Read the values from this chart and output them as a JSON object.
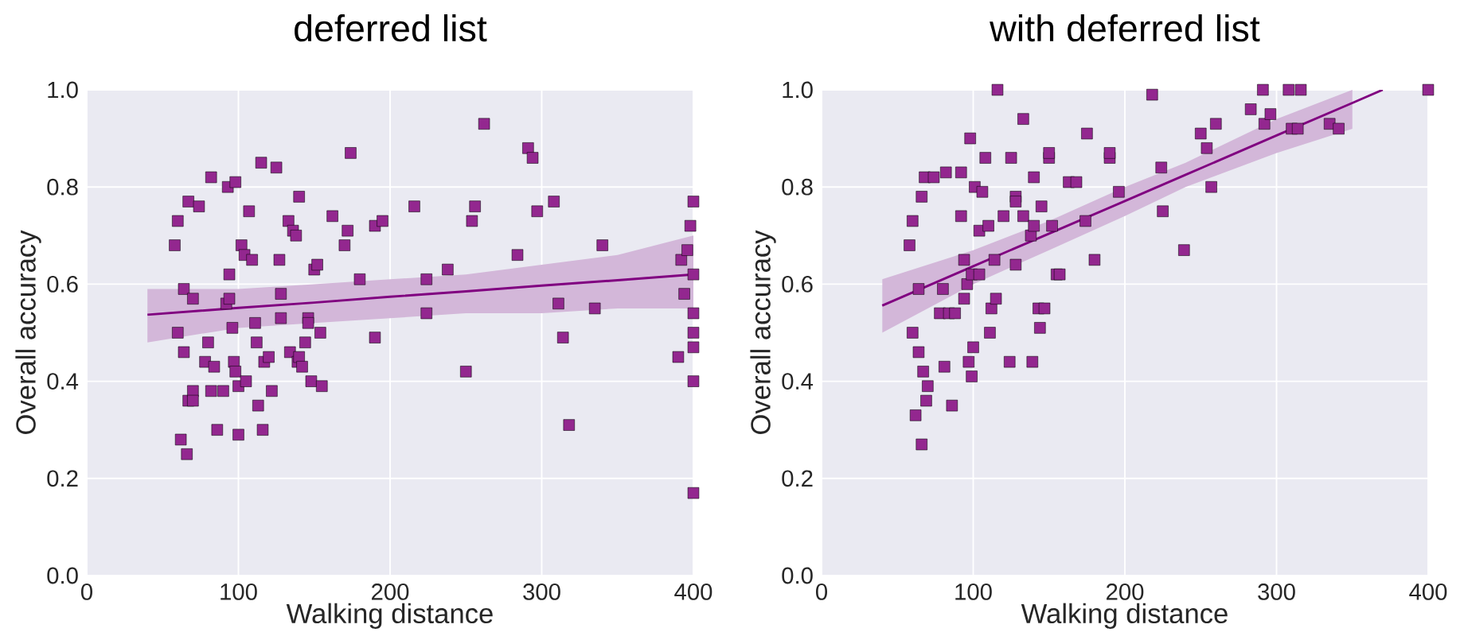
{
  "chart_data": [
    {
      "type": "scatter",
      "title": "deferred list",
      "xlabel": "Walking distance",
      "ylabel": "Overall accuracy",
      "xlim": [
        0,
        400
      ],
      "ylim": [
        0,
        1
      ],
      "xticks": [
        0,
        100,
        200,
        300,
        400
      ],
      "yticks": [
        {
          "value": 0,
          "label": "0.0"
        },
        {
          "value": 0.2,
          "label": "0.2"
        },
        {
          "value": 0.4,
          "label": "0.4"
        },
        {
          "value": 0.6,
          "label": "0.6"
        },
        {
          "value": 0.8,
          "label": "0.8"
        },
        {
          "value": 1,
          "label": "1.0"
        }
      ],
      "grid": true,
      "series": [
        {
          "marker": "square",
          "color": "#93278f",
          "x": [
            58,
            60,
            60,
            62,
            64,
            64,
            66,
            67,
            67,
            70,
            70,
            70,
            74,
            78,
            80,
            82,
            82,
            84,
            86,
            90,
            92,
            93,
            94,
            94,
            96,
            97,
            98,
            98,
            100,
            100,
            102,
            104,
            105,
            107,
            109,
            111,
            112,
            113,
            115,
            116,
            117,
            120,
            122,
            125,
            127,
            128,
            128,
            133,
            134,
            136,
            138,
            139,
            140,
            140,
            142,
            144,
            146,
            146,
            148,
            150,
            152,
            154,
            155,
            162,
            170,
            172,
            174,
            180,
            190,
            190,
            195,
            216,
            224,
            224,
            238,
            250,
            254,
            256,
            262,
            284,
            291,
            294,
            297,
            308,
            311,
            314,
            318,
            335,
            340,
            390,
            392,
            394,
            396,
            398,
            400,
            400,
            400,
            400,
            400,
            400,
            400
          ],
          "values": [
            0.68,
            0.73,
            0.5,
            0.28,
            0.59,
            0.46,
            0.25,
            0.77,
            0.36,
            0.57,
            0.38,
            0.36,
            0.76,
            0.44,
            0.48,
            0.82,
            0.38,
            0.43,
            0.3,
            0.38,
            0.56,
            0.8,
            0.62,
            0.57,
            0.51,
            0.44,
            0.81,
            0.42,
            0.29,
            0.39,
            0.68,
            0.66,
            0.4,
            0.75,
            0.65,
            0.52,
            0.48,
            0.35,
            0.85,
            0.3,
            0.44,
            0.45,
            0.38,
            0.84,
            0.65,
            0.58,
            0.53,
            0.73,
            0.46,
            0.71,
            0.7,
            0.44,
            0.78,
            0.45,
            0.43,
            0.48,
            0.53,
            0.52,
            0.4,
            0.63,
            0.64,
            0.5,
            0.39,
            0.74,
            0.68,
            0.71,
            0.87,
            0.61,
            0.72,
            0.49,
            0.73,
            0.76,
            0.61,
            0.54,
            0.63,
            0.42,
            0.73,
            0.76,
            0.93,
            0.66,
            0.88,
            0.86,
            0.75,
            0.77,
            0.56,
            0.49,
            0.31,
            0.55,
            0.68,
            0.45,
            0.65,
            0.58,
            0.67,
            0.72,
            0.77,
            0.62,
            0.54,
            0.5,
            0.47,
            0.4,
            0.17
          ]
        },
        {
          "type": "line",
          "color": "#800080",
          "x": [
            40,
            100,
            150,
            200,
            250,
            300,
            350,
            400
          ],
          "values": [
            0.537,
            0.551,
            0.562,
            0.574,
            0.585,
            0.597,
            0.608,
            0.62
          ],
          "lower": [
            0.48,
            0.51,
            0.52,
            0.53,
            0.54,
            0.54,
            0.55,
            0.55
          ],
          "upper": [
            0.59,
            0.59,
            0.6,
            0.61,
            0.62,
            0.64,
            0.66,
            0.7
          ]
        }
      ]
    },
    {
      "type": "scatter",
      "title": "with deferred list",
      "xlabel": "Walking distance",
      "ylabel": "Overall accuracy",
      "xlim": [
        0,
        400
      ],
      "ylim": [
        0,
        1
      ],
      "xticks": [
        0,
        100,
        200,
        300,
        400
      ],
      "yticks": [
        {
          "value": 0,
          "label": "0.0"
        },
        {
          "value": 0.2,
          "label": "0.2"
        },
        {
          "value": 0.4,
          "label": "0.4"
        },
        {
          "value": 0.6,
          "label": "0.6"
        },
        {
          "value": 0.8,
          "label": "0.8"
        },
        {
          "value": 1,
          "label": "1.0"
        }
      ],
      "grid": true,
      "series": [
        {
          "marker": "square",
          "color": "#93278f",
          "x": [
            58,
            60,
            60,
            62,
            64,
            64,
            66,
            66,
            67,
            68,
            69,
            70,
            74,
            78,
            80,
            81,
            82,
            84,
            86,
            88,
            92,
            92,
            94,
            94,
            96,
            97,
            98,
            99,
            99,
            100,
            101,
            104,
            104,
            106,
            108,
            110,
            111,
            112,
            114,
            115,
            116,
            120,
            124,
            125,
            128,
            128,
            128,
            133,
            133,
            138,
            139,
            140,
            140,
            143,
            144,
            145,
            147,
            150,
            150,
            152,
            155,
            157,
            163,
            168,
            174,
            175,
            180,
            190,
            190,
            196,
            218,
            225,
            224,
            239,
            250,
            254,
            257,
            260,
            283,
            291,
            292,
            296,
            308,
            310,
            314,
            316,
            335,
            341,
            400
          ],
          "values": [
            0.68,
            0.73,
            0.5,
            0.33,
            0.59,
            0.46,
            0.27,
            0.78,
            0.42,
            0.82,
            0.36,
            0.39,
            0.82,
            0.54,
            0.59,
            0.43,
            0.83,
            0.54,
            0.35,
            0.54,
            0.83,
            0.74,
            0.65,
            0.57,
            0.6,
            0.44,
            0.9,
            0.62,
            0.41,
            0.47,
            0.8,
            0.71,
            0.62,
            0.79,
            0.86,
            0.72,
            0.5,
            0.55,
            0.65,
            0.57,
            1.0,
            0.74,
            0.44,
            0.86,
            0.78,
            0.77,
            0.64,
            0.94,
            0.74,
            0.7,
            0.44,
            0.72,
            0.82,
            0.55,
            0.51,
            0.76,
            0.55,
            0.86,
            0.87,
            0.72,
            0.62,
            0.62,
            0.81,
            0.81,
            0.73,
            0.91,
            0.65,
            0.86,
            0.87,
            0.79,
            0.99,
            0.75,
            0.84,
            0.67,
            0.91,
            0.88,
            0.8,
            0.93,
            0.96,
            1.0,
            0.93,
            0.95,
            1.0,
            0.92,
            0.92,
            1.0,
            0.93,
            0.92,
            1.0
          ]
        },
        {
          "type": "line",
          "color": "#800080",
          "x": [
            40,
            100,
            150,
            200,
            240,
            300,
            350,
            370
          ],
          "values": [
            0.556,
            0.637,
            0.704,
            0.771,
            0.825,
            0.906,
            0.973,
            1.0
          ],
          "lower": [
            0.5,
            0.6,
            0.67,
            0.74,
            0.8,
            0.87,
            0.92,
            null
          ],
          "upper": [
            0.61,
            0.67,
            0.73,
            0.8,
            0.85,
            0.94,
            1.0,
            null
          ]
        }
      ]
    }
  ]
}
